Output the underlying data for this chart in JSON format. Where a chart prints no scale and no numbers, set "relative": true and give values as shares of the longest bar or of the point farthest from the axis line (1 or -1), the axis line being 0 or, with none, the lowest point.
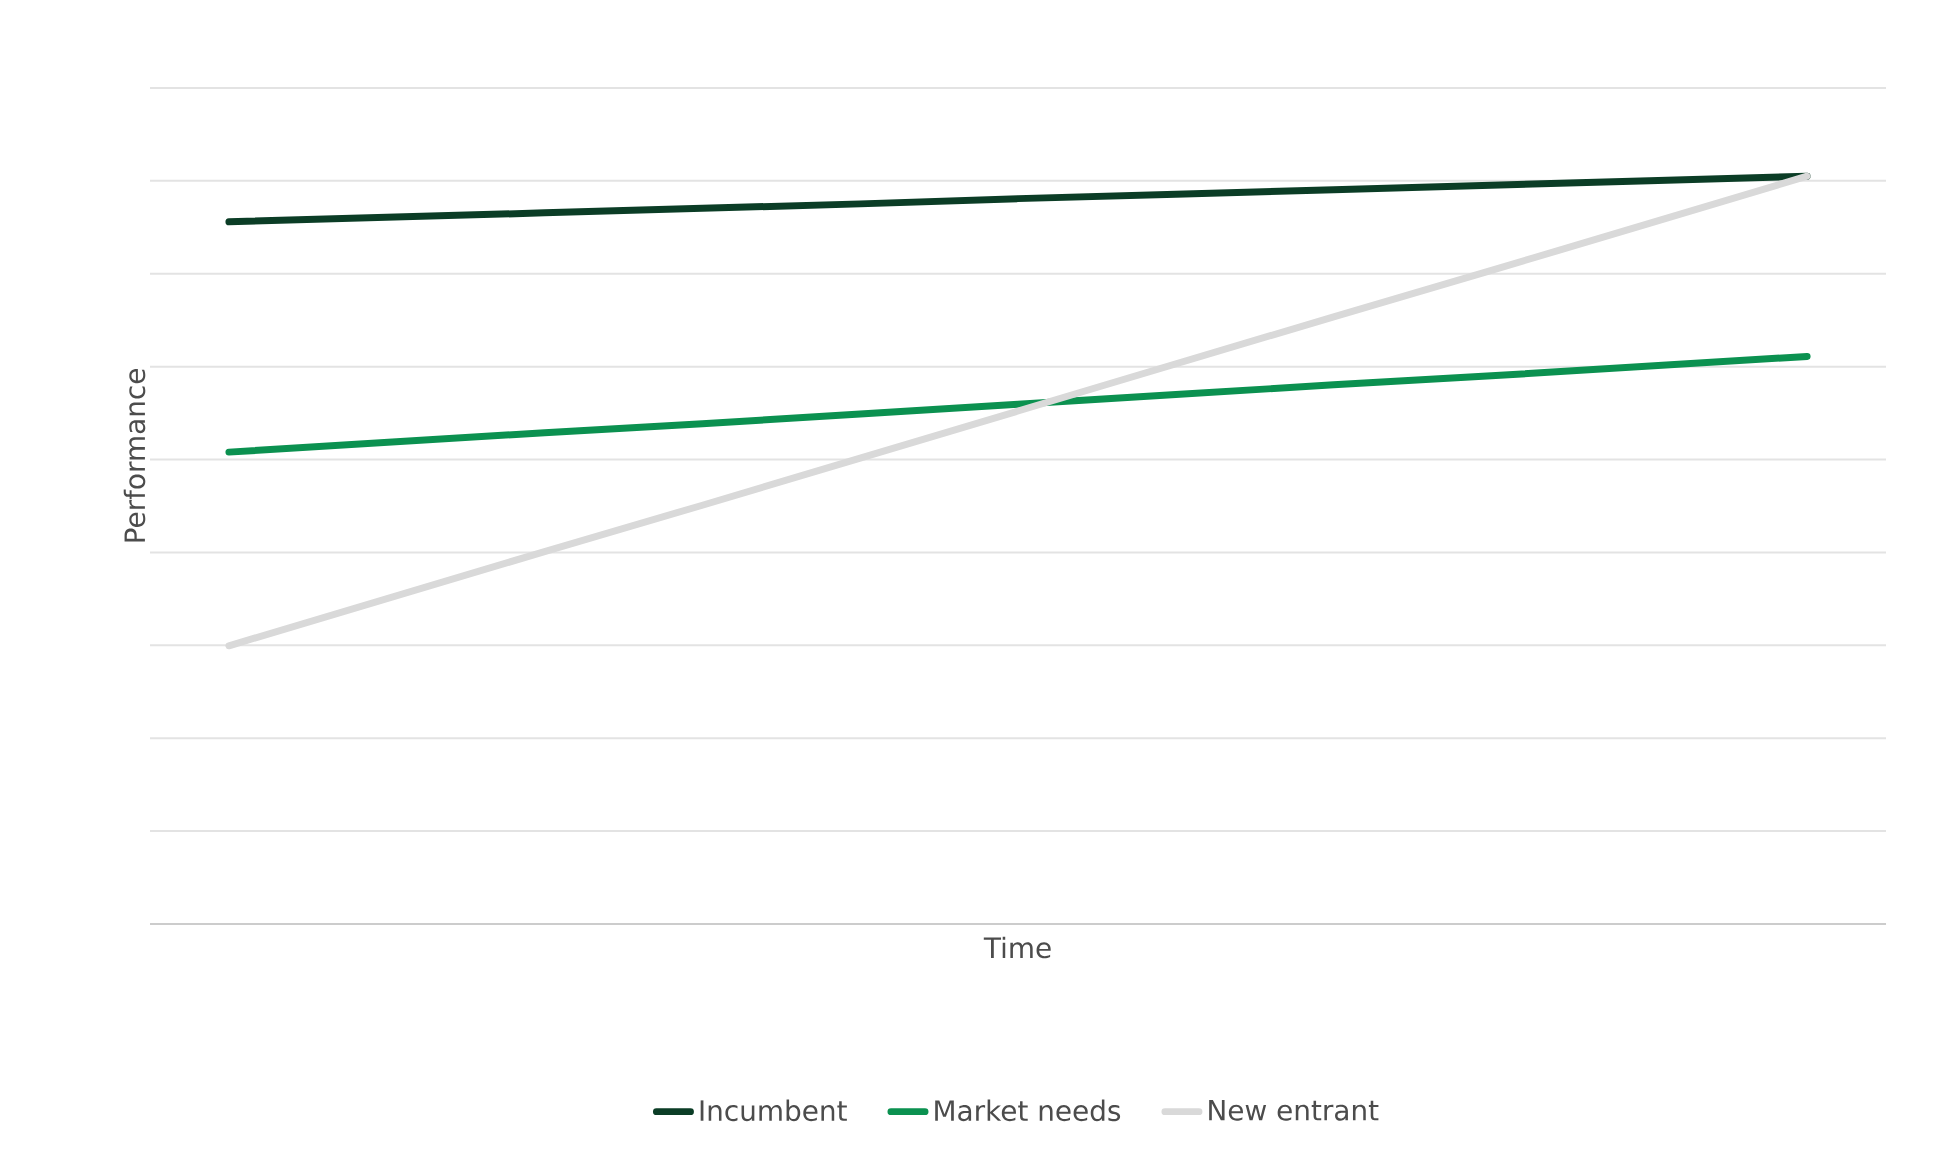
{
  "chart_data": {
    "type": "line",
    "xlabel": "Time",
    "ylabel": "Performance",
    "relative": true,
    "categories": [
      null,
      null,
      null,
      null,
      null,
      null,
      null,
      null,
      null,
      null,
      null
    ],
    "series": [
      {
        "name": "Incumbent",
        "color": "#0b3d26",
        "values": [
          0.939,
          0.945,
          0.951,
          0.957,
          0.963,
          0.97,
          0.976,
          0.982,
          0.988,
          0.994,
          1
        ]
      },
      {
        "name": "Market needs",
        "color": "#0b9150",
        "values": [
          0.631,
          0.644,
          0.657,
          0.669,
          0.682,
          0.695,
          0.708,
          0.721,
          0.733,
          0.746,
          0.759
        ]
      },
      {
        "name": "New entrant",
        "color": "#d9d9d9",
        "values": [
          0.372,
          0.435,
          0.498,
          0.56,
          0.623,
          0.686,
          0.749,
          0.812,
          0.874,
          0.937,
          1
        ]
      }
    ],
    "grid": "y",
    "legend": "bottom",
    "marker": "none",
    "line_style": "solid"
  }
}
